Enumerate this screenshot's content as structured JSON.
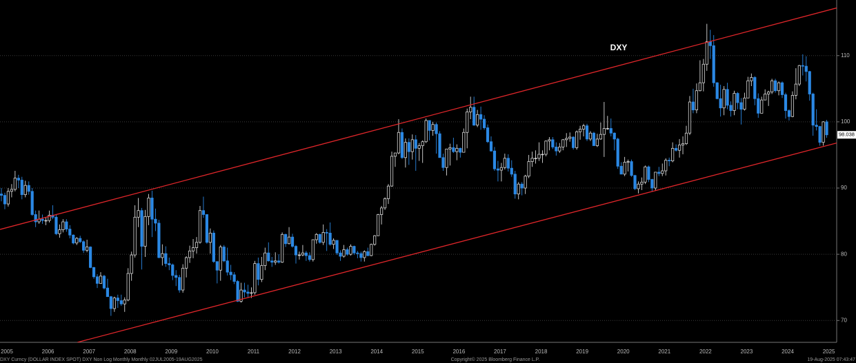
{
  "chart_data": {
    "type": "candlestick",
    "title": "DXY",
    "categories": [
      "2005",
      null,
      null,
      null,
      null,
      null,
      null,
      null,
      null,
      null,
      null,
      null,
      "2006",
      null,
      null,
      null,
      null,
      null,
      null,
      null,
      null,
      null,
      null,
      null,
      "2007",
      null,
      null,
      null,
      null,
      null,
      null,
      null,
      null,
      null,
      null,
      null,
      "2008",
      null,
      null,
      null,
      null,
      null,
      null,
      null,
      null,
      null,
      null,
      null,
      "2009",
      null,
      null,
      null,
      null,
      null,
      null,
      null,
      null,
      null,
      null,
      null,
      "2010",
      null,
      null,
      null,
      null,
      null,
      null,
      null,
      null,
      null,
      null,
      null,
      "2011",
      null,
      null,
      null,
      null,
      null,
      null,
      null,
      null,
      null,
      null,
      null,
      "2012",
      null,
      null,
      null,
      null,
      null,
      null,
      null,
      null,
      null,
      null,
      null,
      "2013",
      null,
      null,
      null,
      null,
      null,
      null,
      null,
      null,
      null,
      null,
      null,
      "2014",
      null,
      null,
      null,
      null,
      null,
      null,
      null,
      null,
      null,
      null,
      null,
      "2015",
      null,
      null,
      null,
      null,
      null,
      null,
      null,
      null,
      null,
      null,
      null,
      "2016",
      null,
      null,
      null,
      null,
      null,
      null,
      null,
      null,
      null,
      null,
      null,
      "2017",
      null,
      null,
      null,
      null,
      null,
      null,
      null,
      null,
      null,
      null,
      null,
      "2018",
      null,
      null,
      null,
      null,
      null,
      null,
      null,
      null,
      null,
      null,
      null,
      "2019",
      null,
      null,
      null,
      null,
      null,
      null,
      null,
      null,
      null,
      null,
      null,
      "2020",
      null,
      null,
      null,
      null,
      null,
      null,
      null,
      null,
      null,
      null,
      null,
      "2021",
      null,
      null,
      null,
      null,
      null,
      null,
      null,
      null,
      null,
      null,
      null,
      "2022",
      null,
      null,
      null,
      null,
      null,
      null,
      null,
      null,
      null,
      null,
      null,
      "2023",
      null,
      null,
      null,
      null,
      null,
      null,
      null,
      null,
      null,
      null,
      null,
      "2024",
      null,
      null,
      null,
      null,
      null,
      null,
      null,
      null,
      null,
      null,
      null,
      "2025",
      null
    ],
    "open": [
      89.1,
      88.9,
      87.6,
      89.5,
      89.8,
      91.5,
      91.2,
      89.0,
      90.4,
      89.5,
      86.0,
      84.9,
      85.3,
      85.1,
      85.1,
      85.9,
      85.6,
      83.1,
      83.7,
      84.9,
      83.8,
      82.9,
      81.7,
      82.4,
      81.9,
      80.6,
      81.1,
      78.0,
      76.6,
      75.6,
      76.7,
      74.9,
      73.6,
      71.8,
      73.4,
      73.0,
      72.5,
      73.1,
      77.1,
      79.9,
      85.6,
      86.6,
      81.2,
      85.7,
      88.5,
      85.3,
      84.7,
      79.5,
      80.1,
      78.6,
      78.4,
      76.8,
      76.5,
      74.6,
      77.9,
      79.5,
      80.5,
      81.0,
      81.8,
      86.6,
      86.0,
      81.8,
      83.2,
      78.9,
      77.6,
      81.1,
      79.0,
      77.3,
      76.9,
      75.9,
      72.9,
      74.6,
      74.3,
      74.1,
      74.2,
      78.6,
      76.2,
      78.3,
      80.2,
      79.0,
      78.8,
      79.0,
      78.8,
      83.0,
      81.6,
      82.6,
      81.2,
      79.9,
      79.9,
      80.2,
      79.8,
      79.2,
      82.2,
      83.0,
      81.8,
      83.3,
      83.2,
      81.5,
      82.1,
      80.2,
      79.7,
      80.7,
      80.0,
      81.2,
      80.2,
      80.1,
      79.5,
      80.4,
      79.8,
      81.5,
      82.8,
      86.0,
      87.0,
      88.4,
      90.3,
      94.8,
      95.3,
      98.4,
      94.6,
      96.9,
      95.5,
      97.3,
      96.0,
      96.4,
      97.0,
      100.2,
      98.7,
      99.6,
      98.2,
      94.6,
      93.1,
      95.9,
      96.1,
      95.5,
      96.0,
      95.4,
      98.4,
      101.5,
      102.2,
      99.5,
      101.1,
      100.4,
      99.1,
      97.0,
      95.6,
      92.9,
      92.7,
      93.1,
      94.5,
      93.0,
      92.1,
      89.1,
      90.6,
      90.0,
      91.8,
      94.0,
      94.5,
      94.5,
      95.1,
      95.1,
      97.1,
      97.3,
      96.2,
      95.6,
      96.2,
      97.3,
      97.5,
      97.7,
      96.1,
      98.5,
      98.9,
      99.4,
      97.4,
      98.3,
      96.4,
      97.4,
      98.1,
      99.0,
      99.0,
      98.3,
      97.4,
      93.3,
      92.1,
      93.9,
      94.0,
      91.9,
      89.9,
      90.6,
      90.9,
      93.2,
      91.3,
      90.0,
      92.4,
      92.2,
      92.6,
      94.2,
      94.1,
      96.0,
      95.7,
      96.5,
      96.7,
      98.3,
      103.0,
      101.8,
      104.7,
      105.9,
      108.7,
      112.1,
      111.5,
      105.9,
      103.5,
      102.1,
      104.9,
      102.5,
      101.7,
      104.3,
      102.9,
      101.9,
      103.6,
      106.2,
      106.7,
      103.5,
      101.3,
      103.3,
      104.2,
      104.5,
      106.2,
      104.7,
      105.9,
      104.1,
      101.7,
      100.8,
      104.0,
      105.7,
      108.5,
      108.4,
      107.6,
      104.2,
      99.5,
      99.3,
      96.9,
      100.0
    ],
    "high": [
      90.0,
      89.3,
      90.0,
      90.6,
      92.6,
      92.0,
      91.7,
      91.1,
      91.0,
      90.0,
      86.6,
      86.6,
      86.0,
      85.6,
      86.6,
      87.4,
      86.0,
      84.5,
      85.3,
      85.3,
      84.4,
      83.0,
      82.6,
      82.8,
      82.1,
      82.2,
      81.2,
      78.1,
      77.0,
      77.3,
      76.9,
      76.3,
      73.7,
      73.6,
      73.9,
      73.9,
      73.5,
      77.9,
      80.4,
      87.4,
      88.5,
      87.0,
      86.7,
      89.1,
      89.6,
      86.9,
      85.2,
      81.5,
      81.2,
      79.5,
      78.6,
      77.6,
      76.9,
      78.5,
      79.7,
      81.3,
      82.3,
      82.6,
      87.3,
      88.7,
      86.0,
      83.9,
      83.6,
      78.9,
      81.4,
      81.4,
      81.0,
      78.4,
      77.3,
      76.1,
      75.7,
      75.7,
      75.4,
      75.0,
      79.0,
      79.5,
      79.6,
      81.0,
      81.8,
      79.6,
      80.3,
      80.0,
      83.3,
      83.1,
      84.1,
      83.1,
      81.4,
      80.4,
      81.4,
      80.5,
      80.3,
      82.2,
      83.2,
      83.1,
      84.5,
      83.8,
      84.8,
      82.4,
      82.1,
      80.6,
      81.4,
      81.0,
      81.5,
      81.3,
      80.5,
      80.4,
      80.6,
      81.0,
      81.6,
      82.9,
      86.1,
      87.3,
      88.6,
      90.6,
      95.5,
      95.3,
      100.4,
      99.0,
      97.5,
      97.5,
      98.1,
      98.0,
      96.8,
      97.2,
      100.5,
      100.2,
      100.0,
      99.9,
      98.6,
      95.2,
      95.9,
      96.7,
      97.6,
      96.6,
      96.1,
      99.0,
      102.0,
      103.8,
      103.8,
      101.8,
      102.3,
      101.0,
      99.6,
      97.8,
      96.2,
      94.1,
      93.8,
      95.2,
      95.1,
      94.2,
      92.6,
      90.9,
      90.9,
      92.0,
      95.0,
      95.5,
      95.7,
      96.9,
      95.7,
      97.2,
      97.7,
      97.7,
      96.9,
      96.8,
      97.4,
      98.3,
      98.4,
      97.8,
      98.7,
      99.4,
      99.7,
      99.7,
      98.6,
      98.5,
      98.2,
      99.9,
      103.0,
      100.9,
      100.5,
      98.4,
      97.6,
      93.9,
      94.7,
      94.3,
      94.3,
      92.0,
      91.0,
      91.6,
      93.4,
      93.4,
      91.4,
      92.4,
      93.2,
      93.7,
      94.5,
      94.6,
      96.9,
      96.6,
      97.4,
      97.8,
      99.4,
      103.9,
      105.0,
      105.8,
      109.3,
      109.5,
      114.8,
      113.9,
      113.1,
      106.0,
      105.6,
      105.4,
      105.9,
      103.1,
      104.7,
      104.5,
      103.6,
      104.4,
      106.8,
      107.3,
      106.9,
      104.3,
      103.8,
      104.9,
      104.7,
      106.5,
      106.5,
      106.1,
      106.1,
      104.4,
      101.9,
      104.6,
      108.1,
      108.6,
      110.2,
      109.9,
      107.7,
      104.4,
      101.9,
      99.4,
      100.1,
      100.3
    ],
    "low": [
      88.0,
      86.8,
      87.2,
      88.6,
      89.5,
      90.0,
      88.3,
      88.6,
      89.0,
      85.8,
      84.1,
      84.6,
      84.6,
      84.4,
      84.8,
      85.3,
      82.9,
      82.5,
      83.3,
      83.4,
      82.4,
      81.5,
      81.4,
      81.7,
      80.2,
      80.3,
      77.9,
      76.3,
      74.9,
      75.6,
      74.7,
      73.6,
      70.7,
      71.3,
      71.9,
      72.2,
      71.3,
      72.9,
      76.0,
      79.5,
      84.1,
      77.7,
      79.6,
      84.4,
      82.6,
      83.5,
      79.4,
      78.3,
      78.1,
      77.6,
      76.1,
      75.2,
      74.2,
      74.2,
      76.5,
      78.7,
      79.4,
      80.1,
      81.6,
      85.5,
      81.6,
      80.1,
      78.7,
      75.6,
      76.0,
      78.8,
      76.8,
      76.1,
      75.5,
      72.8,
      72.7,
      73.5,
      73.4,
      73.4,
      73.9,
      75.3,
      75.8,
      77.6,
      78.9,
      78.1,
      78.4,
      78.6,
      78.7,
      81.1,
      81.5,
      81.0,
      78.6,
      79.2,
      79.7,
      79.0,
      78.9,
      78.9,
      81.6,
      81.6,
      81.4,
      80.5,
      81.3,
      80.8,
      79.9,
      79.0,
      79.5,
      79.8,
      79.8,
      79.9,
      79.4,
      78.9,
      78.9,
      79.7,
      79.7,
      81.3,
      82.8,
      84.5,
      86.7,
      87.6,
      90.2,
      93.2,
      95.1,
      94.4,
      93.1,
      93.5,
      94.3,
      92.6,
      94.1,
      93.8,
      96.8,
      97.2,
      97.9,
      95.2,
      94.6,
      92.6,
      91.9,
      93.4,
      95.3,
      94.2,
      94.6,
      95.4,
      96.0,
      100.4,
      99.4,
      99.2,
      98.8,
      98.8,
      96.8,
      95.5,
      92.6,
      91.0,
      91.0,
      92.8,
      92.5,
      91.7,
      88.4,
      88.3,
      88.9,
      89.1,
      91.5,
      93.2,
      93.7,
      94.1,
      93.8,
      94.8,
      95.7,
      95.9,
      94.9,
      95.3,
      95.7,
      96.2,
      97.0,
      95.8,
      95.8,
      97.3,
      97.8,
      97.1,
      97.1,
      96.4,
      96.2,
      97.3,
      94.7,
      98.8,
      97.8,
      95.7,
      92.9,
      92.1,
      91.8,
      92.5,
      91.7,
      89.7,
      89.2,
      89.7,
      90.6,
      90.9,
      89.5,
      89.6,
      91.8,
      91.8,
      91.9,
      93.3,
      93.9,
      95.5,
      94.6,
      95.1,
      96.5,
      98.0,
      101.3,
      101.3,
      104.6,
      104.6,
      107.7,
      109.5,
      105.3,
      103.4,
      100.8,
      101.0,
      101.9,
      100.8,
      101.0,
      101.9,
      99.6,
      101.7,
      103.6,
      105.4,
      102.5,
      100.6,
      101.3,
      103.3,
      102.4,
      104.2,
      104.4,
      104.0,
      103.6,
      100.5,
      100.2,
      100.7,
      103.4,
      105.4,
      107.0,
      106.1,
      103.2,
      97.9,
      98.7,
      96.4,
      96.4,
      97.6
    ],
    "close": [
      88.9,
      87.6,
      89.5,
      89.8,
      91.5,
      91.2,
      89.0,
      90.4,
      89.5,
      86.0,
      84.9,
      85.3,
      85.1,
      85.1,
      85.9,
      85.6,
      83.1,
      83.7,
      84.9,
      83.8,
      82.9,
      81.7,
      82.4,
      81.9,
      80.6,
      81.1,
      78.0,
      76.6,
      75.6,
      76.7,
      74.9,
      73.6,
      71.8,
      73.4,
      73.0,
      72.5,
      73.1,
      77.1,
      79.9,
      85.6,
      86.6,
      81.2,
      85.7,
      88.5,
      85.3,
      84.7,
      79.5,
      80.1,
      78.6,
      78.4,
      76.8,
      76.5,
      74.6,
      77.9,
      79.5,
      80.5,
      81.0,
      81.8,
      86.6,
      86.0,
      81.8,
      83.2,
      78.9,
      77.6,
      81.1,
      79.0,
      77.3,
      76.9,
      75.9,
      72.9,
      74.6,
      74.3,
      74.1,
      74.2,
      78.6,
      76.2,
      78.3,
      80.2,
      79.0,
      78.8,
      79.0,
      78.8,
      83.0,
      81.6,
      82.6,
      81.2,
      79.9,
      79.9,
      80.2,
      79.8,
      79.2,
      82.2,
      83.0,
      81.8,
      83.3,
      83.2,
      81.5,
      82.1,
      80.2,
      79.7,
      80.7,
      80.0,
      81.2,
      80.2,
      80.1,
      79.5,
      80.4,
      79.8,
      81.5,
      82.8,
      86.0,
      87.0,
      88.4,
      90.3,
      94.8,
      95.3,
      98.4,
      94.6,
      96.9,
      95.5,
      97.3,
      96.0,
      96.4,
      97.0,
      100.2,
      98.7,
      99.6,
      98.2,
      94.6,
      93.1,
      95.9,
      96.1,
      95.5,
      96.0,
      95.4,
      98.4,
      101.5,
      102.2,
      99.5,
      101.1,
      100.4,
      99.1,
      97.0,
      95.6,
      92.9,
      92.7,
      93.1,
      94.5,
      93.0,
      92.1,
      89.1,
      90.6,
      90.0,
      91.8,
      94.0,
      94.5,
      94.5,
      95.1,
      95.1,
      97.1,
      97.3,
      96.2,
      95.6,
      96.2,
      97.3,
      97.5,
      97.7,
      96.1,
      98.5,
      98.9,
      99.4,
      97.4,
      98.3,
      96.4,
      97.4,
      98.1,
      99.0,
      99.0,
      98.3,
      97.4,
      93.3,
      92.1,
      93.9,
      94.0,
      91.9,
      89.9,
      90.6,
      90.9,
      93.2,
      91.3,
      90.0,
      92.4,
      92.2,
      92.6,
      94.2,
      94.1,
      96.0,
      95.7,
      96.5,
      96.7,
      98.3,
      103.0,
      101.8,
      104.7,
      105.9,
      108.7,
      112.1,
      111.5,
      105.9,
      103.5,
      102.1,
      104.9,
      102.5,
      101.7,
      104.3,
      102.9,
      101.9,
      103.6,
      106.2,
      106.7,
      103.5,
      101.3,
      103.3,
      104.2,
      104.5,
      106.2,
      104.7,
      105.9,
      104.1,
      101.7,
      100.8,
      104.0,
      105.7,
      108.5,
      108.4,
      107.6,
      104.2,
      99.5,
      99.3,
      96.9,
      100.0,
      98.038
    ],
    "up_color": "#d9d9d9",
    "down_color": "#2b88e4",
    "last_price": 98.038,
    "ylim": [
      66.7,
      118.4
    ],
    "yticks": [
      70,
      80,
      90,
      100,
      110
    ],
    "grid": true,
    "channel": [
      {
        "color": "#e0262a",
        "x": [
          -0.4,
          243.9
        ],
        "y": [
          83.75,
          117.2
        ]
      },
      {
        "color": "#e0262a",
        "x": [
          22.2,
          243.9
        ],
        "y": [
          66.7,
          96.8
        ]
      }
    ]
  },
  "footer": {
    "left": "DXY Curncy (DOLLAR INDEX SPOT) DXY Non Log Monthly  Monthly 02JUL2005-19AUG2025",
    "center": "Copyright© 2025 Bloomberg Finance L.P.",
    "right": "19-Aug-2025 07:43:47"
  }
}
